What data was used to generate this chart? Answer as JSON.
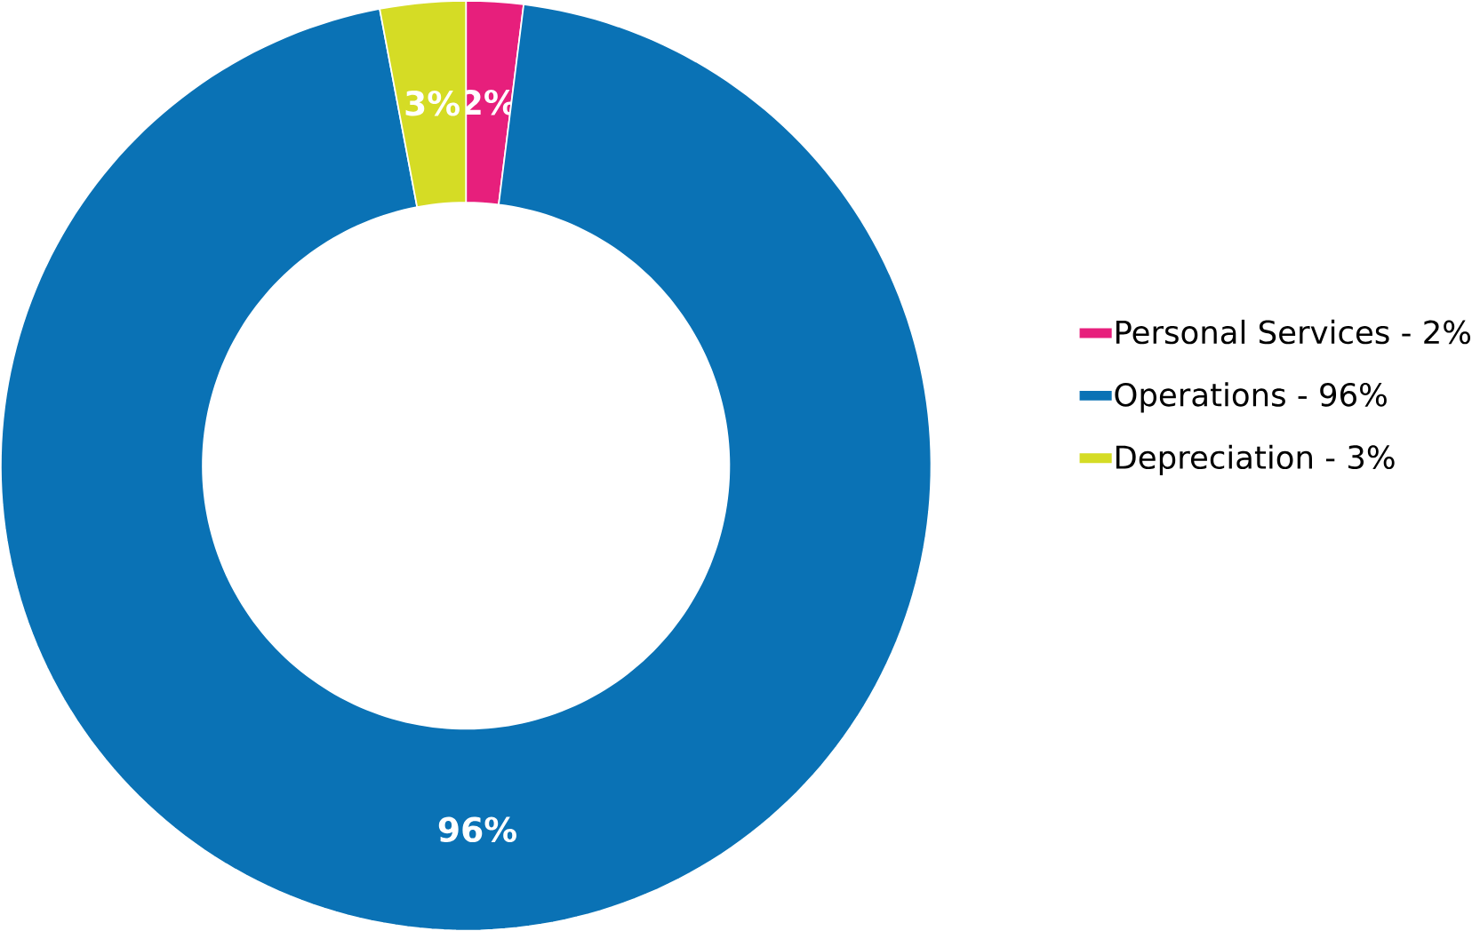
{
  "chart_data": {
    "type": "donut",
    "categories": [
      "Personal Services - 2%",
      "Operations - 96%",
      "Depreciation - 3%"
    ],
    "values": [
      2,
      96,
      3
    ],
    "colors": [
      "#e71f7c",
      "#0a72b5",
      "#d5dc25"
    ],
    "value_labels": [
      "2%",
      "96%",
      "3%"
    ],
    "legend": "right"
  }
}
